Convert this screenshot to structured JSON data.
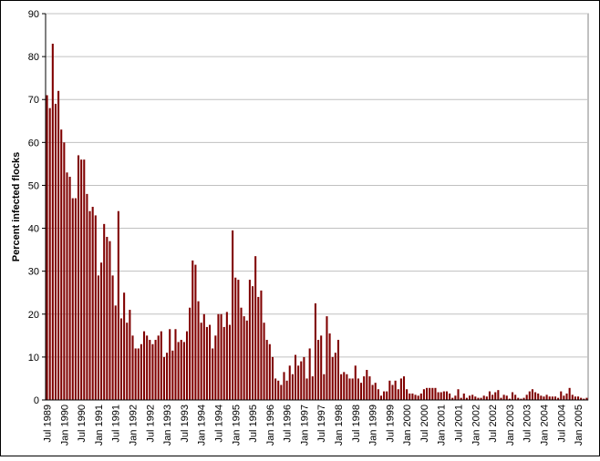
{
  "chart_data": {
    "type": "bar",
    "y_label": "Percent infected flocks",
    "color": "#800000",
    "grid": true,
    "ylim": [
      0,
      90
    ],
    "yticks": [
      0,
      10,
      20,
      30,
      40,
      50,
      60,
      70,
      80,
      90
    ],
    "categories": [
      "Jul 1989",
      null,
      null,
      null,
      null,
      null,
      "Jan 1990",
      null,
      null,
      null,
      null,
      null,
      "Jul 1990",
      null,
      null,
      null,
      null,
      null,
      "Jan 1991",
      null,
      null,
      null,
      null,
      null,
      "Jul 1991",
      null,
      null,
      null,
      null,
      null,
      "Jan 1992",
      null,
      null,
      null,
      null,
      null,
      "Jul 1992",
      null,
      null,
      null,
      null,
      null,
      "Jan 1993",
      null,
      null,
      null,
      null,
      null,
      "Jul 1993",
      null,
      null,
      null,
      null,
      null,
      "Jan 1994",
      null,
      null,
      null,
      null,
      null,
      "Jul 1994",
      null,
      null,
      null,
      null,
      null,
      "Jan 1995",
      null,
      null,
      null,
      null,
      null,
      "Jul 1995",
      null,
      null,
      null,
      null,
      null,
      "Jan 1996",
      null,
      null,
      null,
      null,
      null,
      "Jul 1996",
      null,
      null,
      null,
      null,
      null,
      "Jan 1997",
      null,
      null,
      null,
      null,
      null,
      "Jul 1997",
      null,
      null,
      null,
      null,
      null,
      "Jan 1998",
      null,
      null,
      null,
      null,
      null,
      "Jul 1998",
      null,
      null,
      null,
      null,
      null,
      "Jan 1999",
      null,
      null,
      null,
      null,
      null,
      "Jul 1999",
      null,
      null,
      null,
      null,
      null,
      "Jan 2000",
      null,
      null,
      null,
      null,
      null,
      "Jul 2000",
      null,
      null,
      null,
      null,
      null,
      "Jan 2001",
      null,
      null,
      null,
      null,
      null,
      "Jul 2001",
      null,
      null,
      null,
      null,
      null,
      "Jan 2002",
      null,
      null,
      null,
      null,
      null,
      "Jul 2002",
      null,
      null,
      null,
      null,
      null,
      "Jan 2003",
      null,
      null,
      null,
      null,
      null,
      "Jul 2003",
      null,
      null,
      null,
      null,
      null,
      "Jan 2004",
      null,
      null,
      null,
      null,
      null,
      "Jul 2004",
      null,
      null,
      null,
      null,
      null,
      "Jan 2005",
      null,
      null,
      null
    ],
    "values": [
      71,
      68,
      83,
      69,
      72,
      63,
      60,
      53,
      52,
      47,
      47,
      57,
      56,
      56,
      48,
      44,
      45,
      43,
      29,
      32,
      41,
      38,
      37,
      29,
      22,
      44,
      19,
      25,
      18,
      21,
      15,
      12,
      12,
      13,
      16,
      15,
      14,
      13,
      14,
      15,
      16,
      10,
      11,
      16.5,
      11.5,
      16.5,
      13.5,
      14,
      13.5,
      16,
      21.5,
      32.5,
      31.5,
      23,
      18,
      20,
      17,
      17.5,
      12,
      15,
      20,
      20,
      17,
      20.5,
      17.5,
      39.5,
      28.5,
      28,
      21.5,
      19.5,
      18.5,
      28,
      26.5,
      33.5,
      24,
      25.5,
      18,
      14,
      13,
      10,
      5,
      4.5,
      3.5,
      6.5,
      4.5,
      8,
      6,
      10.5,
      8,
      9,
      10,
      5,
      12,
      5.5,
      22.5,
      14,
      15,
      6,
      19.5,
      15.5,
      10,
      11,
      14,
      6,
      6.5,
      6,
      5,
      5,
      8,
      5,
      4,
      5.5,
      7,
      5.5,
      3.5,
      4,
      2.5,
      1,
      2,
      2,
      4.5,
      3.5,
      4.5,
      2.5,
      5,
      5.5,
      2.5,
      1.5,
      1.5,
      1.2,
      1,
      1.5,
      2.5,
      2.8,
      2.8,
      2.8,
      2.8,
      1.8,
      1.8,
      2,
      2,
      1.5,
      0.5,
      1,
      2.5,
      0.5,
      1.5,
      0.5,
      1,
      1.2,
      0.8,
      0.5,
      0.5,
      1,
      0.8,
      2,
      1.2,
      1.8,
      2.3,
      0.5,
      1.2,
      1,
      0.3,
      1.8,
      1.2,
      0.5,
      0.3,
      0.5,
      1.2,
      2,
      2.5,
      1.8,
      1.5,
      1,
      0.8,
      1.2,
      0.8,
      0.8,
      0.8,
      0.5,
      2,
      1,
      1.5,
      2.8,
      1.2,
      0.8,
      0.8,
      0.5,
      0.3,
      0.5
    ]
  }
}
